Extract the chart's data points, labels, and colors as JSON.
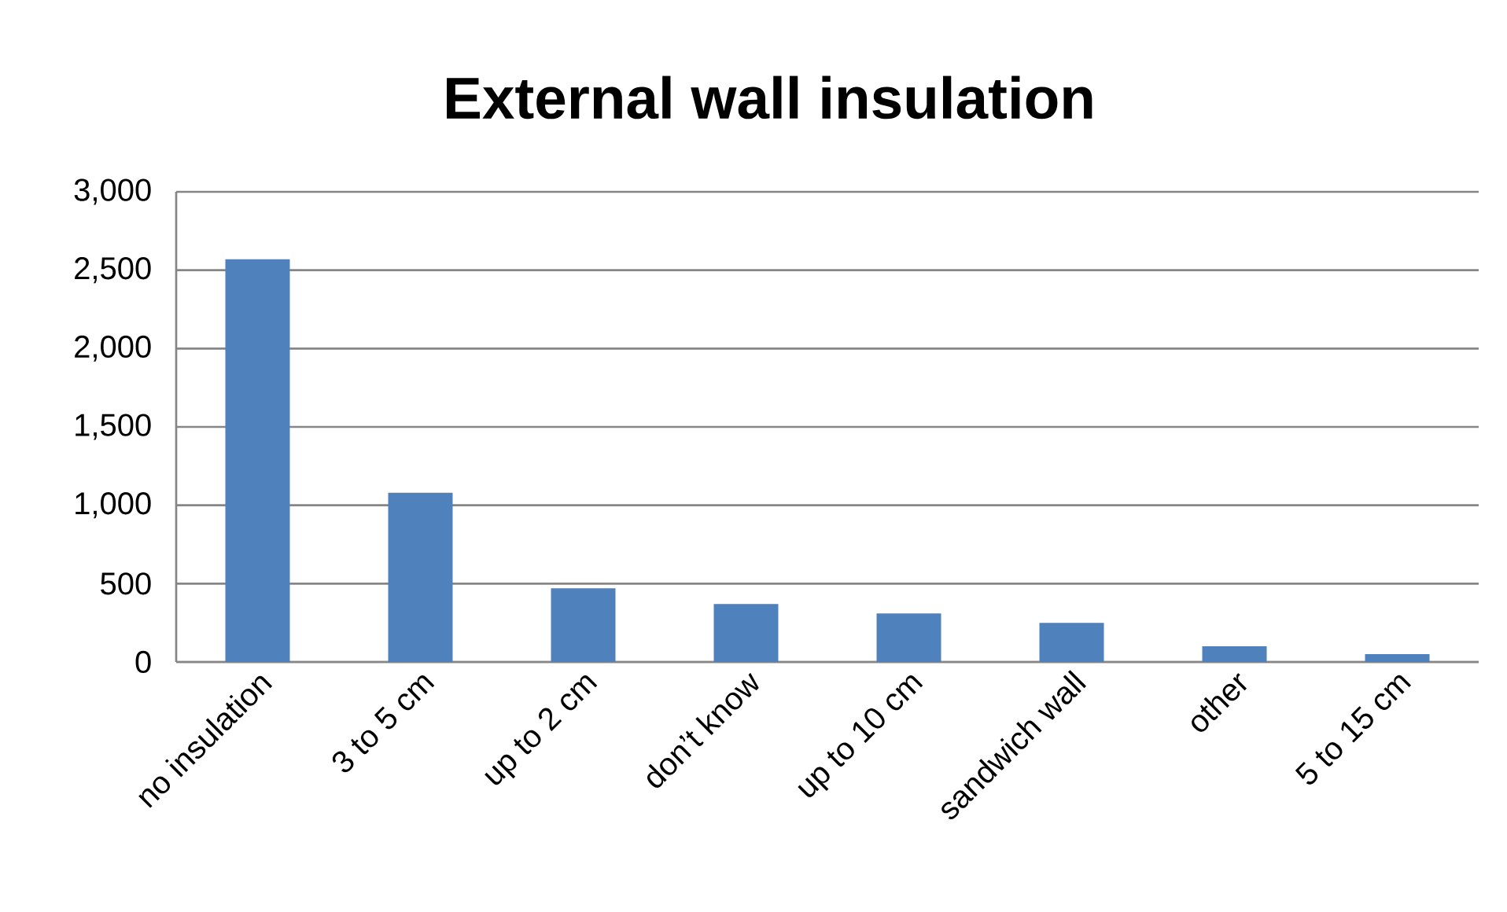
{
  "chart_data": {
    "type": "bar",
    "title": "External wall insulation",
    "categories": [
      "no insulation",
      "3 to 5 cm",
      "up to 2 cm",
      "don’t know",
      "up to 10 cm",
      "sandwich wall",
      "other",
      "5 to 15 cm"
    ],
    "values": [
      2570,
      1080,
      470,
      370,
      310,
      250,
      100,
      50
    ],
    "color": "#4f81bd",
    "ylim": [
      0,
      3000
    ],
    "yticks": [
      {
        "value": 0,
        "label": "0"
      },
      {
        "value": 500,
        "label": "500"
      },
      {
        "value": 1000,
        "label": "1,000"
      },
      {
        "value": 1500,
        "label": "1,500"
      },
      {
        "value": 2000,
        "label": "2,000"
      },
      {
        "value": 2500,
        "label": "2,500"
      },
      {
        "value": 3000,
        "label": "3,000"
      }
    ],
    "grid": "y"
  }
}
